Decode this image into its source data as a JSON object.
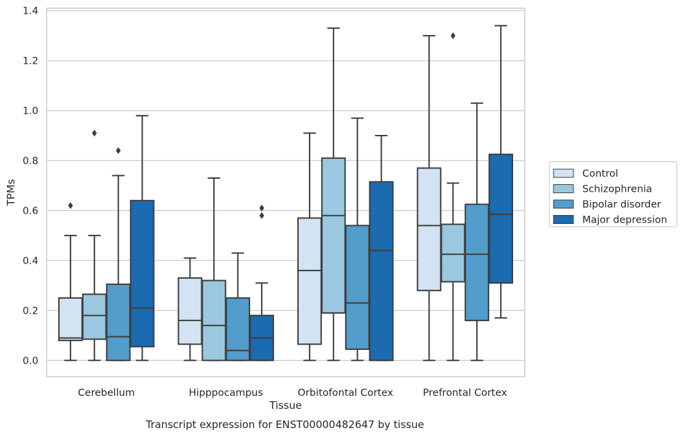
{
  "chart_data": {
    "type": "boxplot",
    "title": "Transcript expression for ENST00000482647 by tissue",
    "xlabel": "Tissue",
    "ylabel": "TPMs",
    "ylim": [
      -0.065,
      1.41
    ],
    "yticks": [
      0.0,
      0.2,
      0.4,
      0.6,
      0.8,
      1.0,
      1.2,
      1.4
    ],
    "ytick_labels": [
      "0.0",
      "0.2",
      "0.4",
      "0.6",
      "0.8",
      "1.0",
      "1.2",
      "1.4"
    ],
    "grid": "horizontal",
    "legend_position": "right",
    "categories": [
      "Cerebellum",
      "Hipppocampus",
      "Orbitofontal Cortex",
      "Prefrontal Cortex"
    ],
    "series": [
      {
        "name": "Control",
        "color": "#d2e3f3",
        "boxes": [
          {
            "whislo": 0.0,
            "q1": 0.08,
            "med": 0.09,
            "q3": 0.25,
            "whishi": 0.5,
            "fliers": [
              0.62
            ]
          },
          {
            "whislo": 0.0,
            "q1": 0.065,
            "med": 0.16,
            "q3": 0.33,
            "whishi": 0.41,
            "fliers": []
          },
          {
            "whislo": 0.0,
            "q1": 0.065,
            "med": 0.36,
            "q3": 0.57,
            "whishi": 0.91,
            "fliers": []
          },
          {
            "whislo": 0.0,
            "q1": 0.28,
            "med": 0.54,
            "q3": 0.77,
            "whishi": 1.3,
            "fliers": []
          }
        ]
      },
      {
        "name": "Schizophrenia",
        "color": "#9ac8e0",
        "boxes": [
          {
            "whislo": 0.0,
            "q1": 0.085,
            "med": 0.18,
            "q3": 0.265,
            "whishi": 0.5,
            "fliers": [
              0.91
            ]
          },
          {
            "whislo": 0.0,
            "q1": 0.0,
            "med": 0.14,
            "q3": 0.32,
            "whishi": 0.73,
            "fliers": []
          },
          {
            "whislo": 0.0,
            "q1": 0.19,
            "med": 0.58,
            "q3": 0.81,
            "whishi": 1.33,
            "fliers": []
          },
          {
            "whislo": 0.0,
            "q1": 0.315,
            "med": 0.425,
            "q3": 0.545,
            "whishi": 0.71,
            "fliers": [
              1.3
            ]
          }
        ]
      },
      {
        "name": "Bipolar disorder",
        "color": "#529dcc",
        "boxes": [
          {
            "whislo": 0.0,
            "q1": 0.0,
            "med": 0.095,
            "q3": 0.305,
            "whishi": 0.74,
            "fliers": [
              0.84
            ]
          },
          {
            "whislo": 0.0,
            "q1": 0.0,
            "med": 0.04,
            "q3": 0.25,
            "whishi": 0.43,
            "fliers": []
          },
          {
            "whislo": 0.0,
            "q1": 0.045,
            "med": 0.23,
            "q3": 0.54,
            "whishi": 0.97,
            "fliers": []
          },
          {
            "whislo": 0.0,
            "q1": 0.16,
            "med": 0.425,
            "q3": 0.625,
            "whishi": 1.03,
            "fliers": []
          }
        ]
      },
      {
        "name": "Major depression",
        "color": "#1c6aaf",
        "boxes": [
          {
            "whislo": 0.0,
            "q1": 0.055,
            "med": 0.21,
            "q3": 0.64,
            "whishi": 0.98,
            "fliers": []
          },
          {
            "whislo": 0.0,
            "q1": 0.0,
            "med": 0.09,
            "q3": 0.18,
            "whishi": 0.31,
            "fliers": [
              0.58,
              0.61
            ]
          },
          {
            "whislo": 0.0,
            "q1": 0.0,
            "med": 0.44,
            "q3": 0.715,
            "whishi": 0.9,
            "fliers": []
          },
          {
            "whislo": 0.17,
            "q1": 0.31,
            "med": 0.585,
            "q3": 0.825,
            "whishi": 1.34,
            "fliers": []
          }
        ]
      }
    ]
  }
}
